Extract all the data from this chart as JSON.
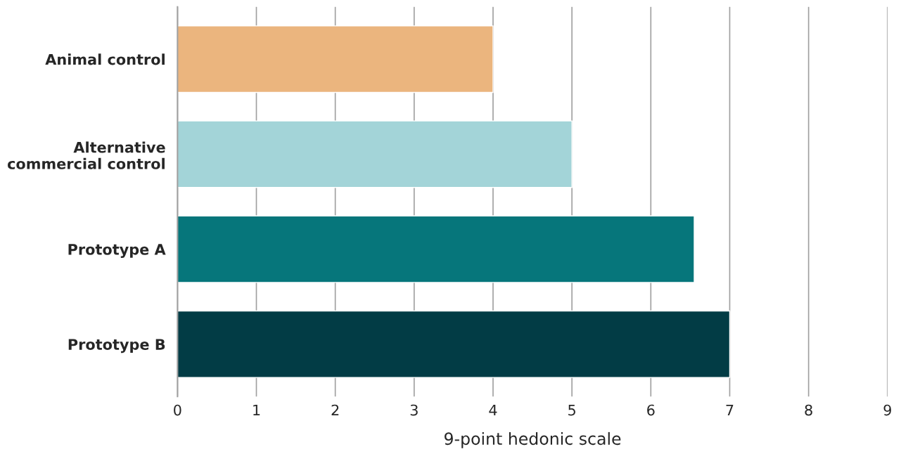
{
  "chart_data": {
    "type": "bar",
    "orientation": "horizontal",
    "xlabel": "9-point hedonic scale",
    "categories": [
      "Animal control",
      "Alternative\ncommercial control",
      "Prototype A",
      "Prototype B"
    ],
    "values": [
      4,
      5,
      6.55,
      7
    ],
    "colors": [
      "#ebb57e",
      "#a3d4d8",
      "#06767b",
      "#023c45"
    ],
    "xlim": [
      0,
      9
    ],
    "xticks": [
      0,
      1,
      2,
      3,
      4,
      5,
      6,
      7,
      8,
      9
    ],
    "grid": "x",
    "legend": false
  }
}
